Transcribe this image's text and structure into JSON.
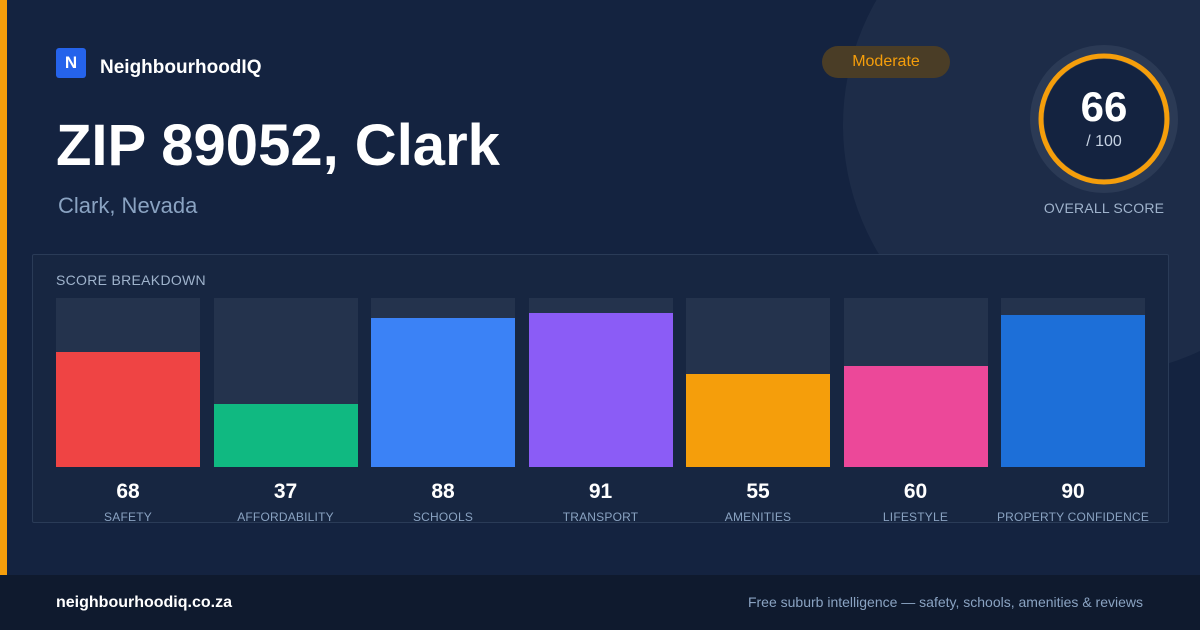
{
  "brand": {
    "logo_letter": "N",
    "name": "NeighbourhoodIQ"
  },
  "location": {
    "title": "ZIP 89052, Clark",
    "subtitle": "Clark, Nevada"
  },
  "rating_badge": "Moderate",
  "overall": {
    "score": 66,
    "score_text": "66",
    "max_text": "/ 100",
    "label": "OVERALL SCORE"
  },
  "colors": {
    "accent": "#f59e0b",
    "ring_track": "#2b3a55"
  },
  "breakdown": {
    "title": "SCORE BREAKDOWN",
    "items": [
      {
        "label": "SAFETY",
        "value": 68,
        "value_text": "68",
        "color": "#ef4444"
      },
      {
        "label": "AFFORDABILITY",
        "value": 37,
        "value_text": "37",
        "color": "#10b981"
      },
      {
        "label": "SCHOOLS",
        "value": 88,
        "value_text": "88",
        "color": "#3b82f6"
      },
      {
        "label": "TRANSPORT",
        "value": 91,
        "value_text": "91",
        "color": "#8b5cf6"
      },
      {
        "label": "AMENITIES",
        "value": 55,
        "value_text": "55",
        "color": "#f59e0b"
      },
      {
        "label": "LIFESTYLE",
        "value": 60,
        "value_text": "60",
        "color": "#ec4899"
      },
      {
        "label": "PROPERTY CONFIDENCE",
        "value": 90,
        "value_text": "90",
        "color": "#1d6fd8"
      }
    ]
  },
  "footer": {
    "url": "neighbourhoodiq.co.za",
    "tagline": "Free suburb intelligence — safety, schools, amenities & reviews"
  }
}
